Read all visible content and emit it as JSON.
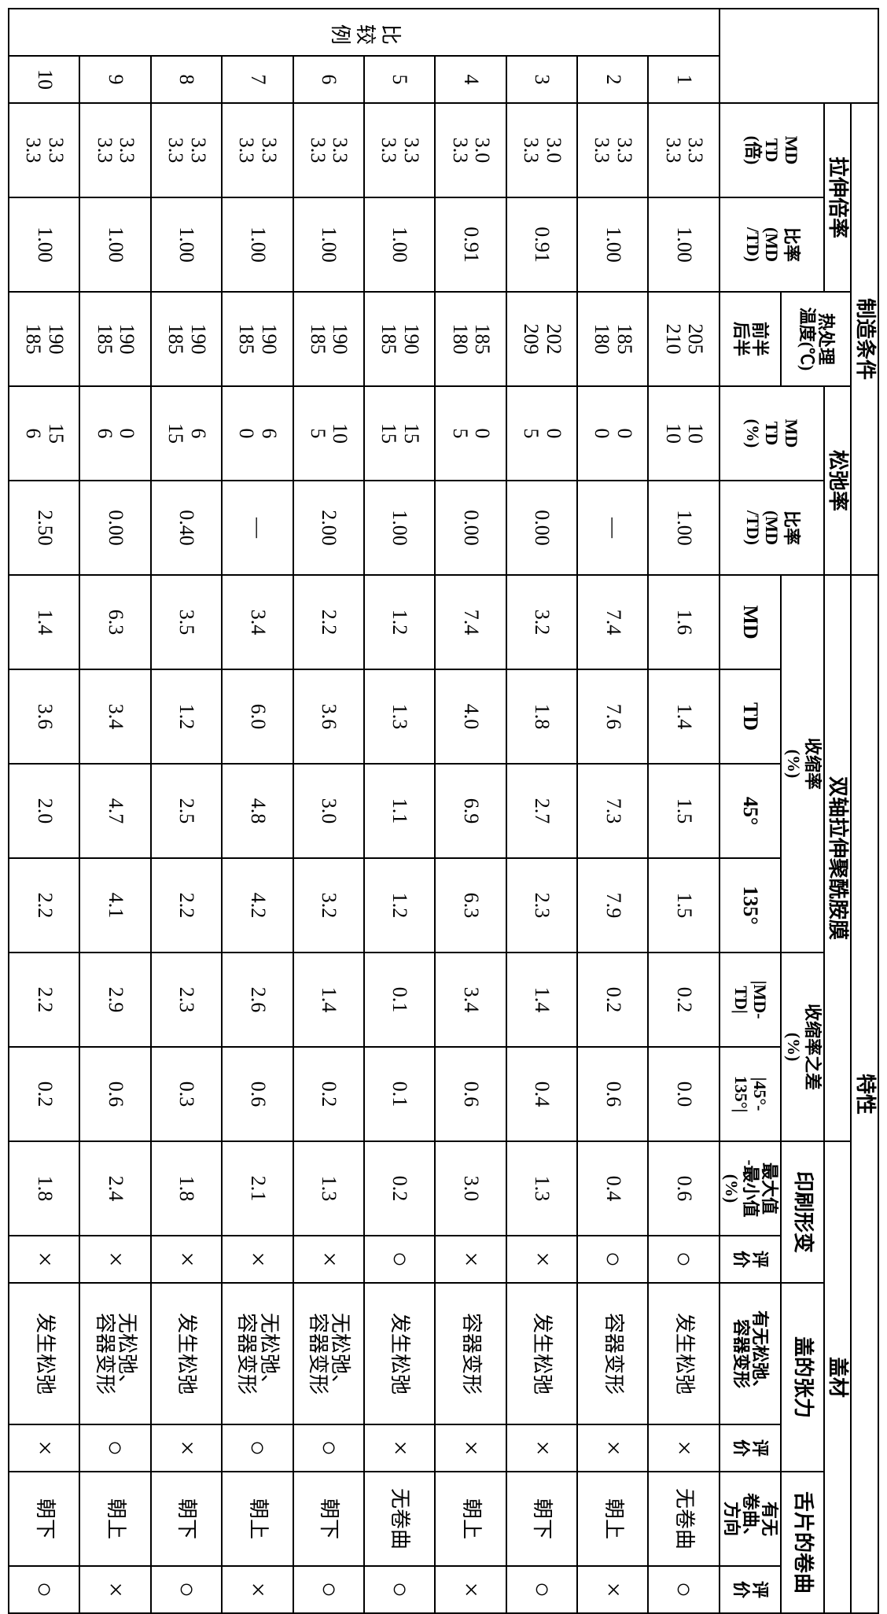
{
  "headers": {
    "mfg": "制造条件",
    "props": "特性",
    "stretch": "拉伸倍率",
    "stretch_mdtd": "MD<br>TD<br>(倍)",
    "stretch_ratio": "比率<br>(MD<br>/TD)",
    "heat": "热处理<br>温度(℃)",
    "heat_fb": "前半<br>后半",
    "relax": "松弛率",
    "relax_mdtd": "MD<br>TD<br>(%)",
    "relax_ratio": "比率<br>(MD<br>/TD)",
    "biax": "双轴拉伸聚酰胺膜",
    "shrink": "收缩率<br>(%)",
    "md": "MD",
    "td": "TD",
    "d45": "45°",
    "d135": "135°",
    "shrink_diff": "收缩率之差<br>(%)",
    "mdtd_abs": "|MD-<br>TD|",
    "d45135_abs": "|45°-<br>135°|",
    "lid": "盖材",
    "print": "印刷形变",
    "print_val": "最大值<br>-最小值<br>(%)",
    "eval": "评<br>价",
    "tension": "盖的张力",
    "tension_txt": "有无松弛、<br>容器变形",
    "tongue": "舌片的卷曲",
    "tongue_txt": "有无<br>卷曲、<br>方向",
    "compare": "比较例"
  },
  "rows": [
    {
      "n": "1",
      "s_md": "3.3",
      "s_td": "3.3",
      "s_r": "1.00",
      "h_f": "205",
      "h_b": "210",
      "r_md": "10",
      "r_td": "10",
      "r_r": "1.00",
      "sh_md": "1.6",
      "sh_td": "1.4",
      "sh_45": "1.5",
      "sh_135": "1.5",
      "d_mdtd": "0.2",
      "d_45": "0.0",
      "p_v": "0.6",
      "p_e": "○",
      "t_txt": "发生松弛",
      "t_e": "×",
      "c_txt": "无卷曲",
      "c_e": "○"
    },
    {
      "n": "2",
      "s_md": "3.3",
      "s_td": "3.3",
      "s_r": "1.00",
      "h_f": "185",
      "h_b": "180",
      "r_md": "0",
      "r_td": "0",
      "r_r": "—",
      "sh_md": "7.4",
      "sh_td": "7.6",
      "sh_45": "7.3",
      "sh_135": "7.9",
      "d_mdtd": "0.2",
      "d_45": "0.6",
      "p_v": "0.4",
      "p_e": "○",
      "t_txt": "容器变形",
      "t_e": "×",
      "c_txt": "朝上",
      "c_e": "×"
    },
    {
      "n": "3",
      "s_md": "3.0",
      "s_td": "3.3",
      "s_r": "0.91",
      "h_f": "202",
      "h_b": "209",
      "r_md": "0",
      "r_td": "5",
      "r_r": "0.00",
      "sh_md": "3.2",
      "sh_td": "1.8",
      "sh_45": "2.7",
      "sh_135": "2.3",
      "d_mdtd": "1.4",
      "d_45": "0.4",
      "p_v": "1.3",
      "p_e": "×",
      "t_txt": "发生松弛",
      "t_e": "×",
      "c_txt": "朝下",
      "c_e": "○"
    },
    {
      "n": "4",
      "s_md": "3.0",
      "s_td": "3.3",
      "s_r": "0.91",
      "h_f": "185",
      "h_b": "180",
      "r_md": "0",
      "r_td": "5",
      "r_r": "0.00",
      "sh_md": "7.4",
      "sh_td": "4.0",
      "sh_45": "6.9",
      "sh_135": "6.3",
      "d_mdtd": "3.4",
      "d_45": "0.6",
      "p_v": "3.0",
      "p_e": "×",
      "t_txt": "容器变形",
      "t_e": "×",
      "c_txt": "朝上",
      "c_e": "×"
    },
    {
      "n": "5",
      "s_md": "3.3",
      "s_td": "3.3",
      "s_r": "1.00",
      "h_f": "190",
      "h_b": "185",
      "r_md": "15",
      "r_td": "15",
      "r_r": "1.00",
      "sh_md": "1.2",
      "sh_td": "1.3",
      "sh_45": "1.1",
      "sh_135": "1.2",
      "d_mdtd": "0.1",
      "d_45": "0.1",
      "p_v": "0.2",
      "p_e": "○",
      "t_txt": "发生松弛",
      "t_e": "×",
      "c_txt": "无卷曲",
      "c_e": "○"
    },
    {
      "n": "6",
      "s_md": "3.3",
      "s_td": "3.3",
      "s_r": "1.00",
      "h_f": "190",
      "h_b": "185",
      "r_md": "10",
      "r_td": "5",
      "r_r": "2.00",
      "sh_md": "2.2",
      "sh_td": "3.6",
      "sh_45": "3.0",
      "sh_135": "3.2",
      "d_mdtd": "1.4",
      "d_45": "0.2",
      "p_v": "1.3",
      "p_e": "×",
      "t_txt": "无松弛、<br>容器变形",
      "t_e": "○",
      "c_txt": "朝下",
      "c_e": "○"
    },
    {
      "n": "7",
      "s_md": "3.3",
      "s_td": "3.3",
      "s_r": "1.00",
      "h_f": "190",
      "h_b": "185",
      "r_md": "6",
      "r_td": "0",
      "r_r": "—",
      "sh_md": "3.4",
      "sh_td": "6.0",
      "sh_45": "4.8",
      "sh_135": "4.2",
      "d_mdtd": "2.6",
      "d_45": "0.6",
      "p_v": "2.1",
      "p_e": "×",
      "t_txt": "无松弛、<br>容器变形",
      "t_e": "○",
      "c_txt": "朝上",
      "c_e": "×"
    },
    {
      "n": "8",
      "s_md": "3.3",
      "s_td": "3.3",
      "s_r": "1.00",
      "h_f": "190",
      "h_b": "185",
      "r_md": "6",
      "r_td": "15",
      "r_r": "0.40",
      "sh_md": "3.5",
      "sh_td": "1.2",
      "sh_45": "2.5",
      "sh_135": "2.2",
      "d_mdtd": "2.3",
      "d_45": "0.3",
      "p_v": "1.8",
      "p_e": "×",
      "t_txt": "发生松弛",
      "t_e": "×",
      "c_txt": "朝下",
      "c_e": "○"
    },
    {
      "n": "9",
      "s_md": "3.3",
      "s_td": "3.3",
      "s_r": "1.00",
      "h_f": "190",
      "h_b": "185",
      "r_md": "0",
      "r_td": "6",
      "r_r": "0.00",
      "sh_md": "6.3",
      "sh_td": "3.4",
      "sh_45": "4.7",
      "sh_135": "4.1",
      "d_mdtd": "2.9",
      "d_45": "0.6",
      "p_v": "2.4",
      "p_e": "×",
      "t_txt": "无松弛、<br>容器变形",
      "t_e": "○",
      "c_txt": "朝上",
      "c_e": "×"
    },
    {
      "n": "10",
      "s_md": "3.3",
      "s_td": "3.3",
      "s_r": "1.00",
      "h_f": "190",
      "h_b": "185",
      "r_md": "15",
      "r_td": "6",
      "r_r": "2.50",
      "sh_md": "1.4",
      "sh_td": "3.6",
      "sh_45": "2.0",
      "sh_135": "2.2",
      "d_mdtd": "2.2",
      "d_45": "0.2",
      "p_v": "1.8",
      "p_e": "×",
      "t_txt": "发生松弛",
      "t_e": "×",
      "c_txt": "朝下",
      "c_e": "○"
    }
  ]
}
